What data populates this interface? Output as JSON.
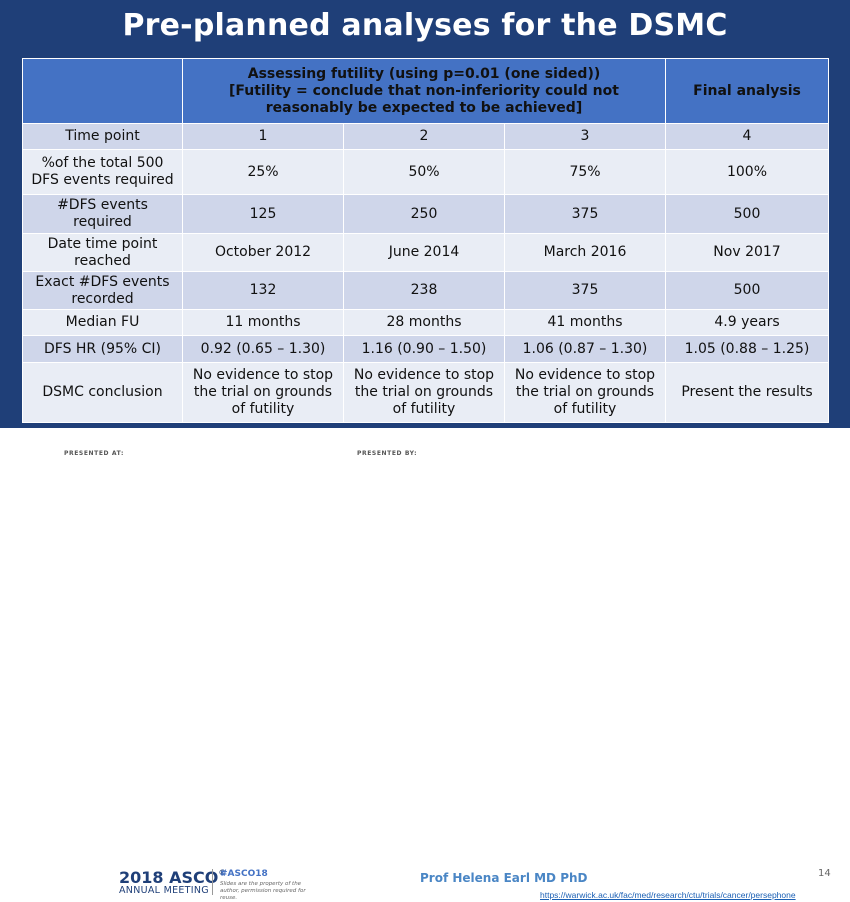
{
  "title": "Pre-planned analyses for the DSMC",
  "table": {
    "header": {
      "blank": "",
      "futility_line1": "Assessing futility (using p=0.01 (one sided))",
      "futility_line2": "[Futility = conclude that non-inferiority could not reasonably be expected to be achieved]",
      "final": "Final analysis"
    },
    "rows": [
      {
        "label": "Time point",
        "cells": [
          "1",
          "2",
          "3",
          "4"
        ]
      },
      {
        "label": "%of the total 500 DFS events required",
        "cells": [
          "25%",
          "50%",
          "75%",
          "100%"
        ]
      },
      {
        "label": "#DFS events required",
        "cells": [
          "125",
          "250",
          "375",
          "500"
        ]
      },
      {
        "label": "Date time point reached",
        "cells": [
          "October 2012",
          "June 2014",
          "March 2016",
          "Nov 2017"
        ]
      },
      {
        "label": "Exact #DFS events recorded",
        "cells": [
          "132",
          "238",
          "375",
          "500"
        ]
      },
      {
        "label": "Median FU",
        "cells": [
          "11 months",
          "28 months",
          "41 months",
          "4.9 years"
        ]
      },
      {
        "label": "DFS HR (95% CI)",
        "cells": [
          "0.92 (0.65 – 1.30)",
          "1.16 (0.90 – 1.50)",
          "1.06 (0.87 – 1.30)",
          "1.05 (0.88 – 1.25)"
        ]
      },
      {
        "label": "DSMC conclusion",
        "cells": [
          "No evidence to stop the trial on grounds of futility",
          "No evidence to stop the trial on grounds of futility",
          "No evidence to stop the trial on grounds of futility",
          "Present the results"
        ]
      }
    ]
  },
  "footer": {
    "presented_at": "PRESENTED AT:",
    "asco_year": "2018",
    "asco_name": "ASCO",
    "asco_mark": "®",
    "meeting": "ANNUAL MEETING",
    "hashtag": "#ASCO18",
    "permission": "Slides are the property of the author, permission required for reuse.",
    "presented_by": "PRESENTED BY:",
    "presenter": "Prof Helena Earl MD PhD",
    "page": "14",
    "url": "https://warwick.ac.uk/fac/med/research/ctu/trials/cancer/persephone"
  }
}
